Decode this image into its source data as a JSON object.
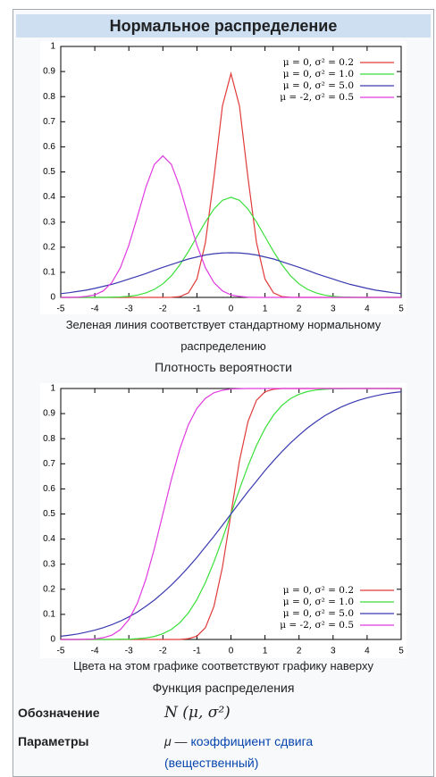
{
  "header": {
    "title": "Нормальное распределение"
  },
  "chart_data": [
    {
      "type": "line",
      "caption": "Зеленая линия соответствует стандартному нормальному распределению",
      "label": "Плотность вероятности",
      "legend": "upper right",
      "xlim": [
        -5,
        5
      ],
      "ylim": [
        0,
        1
      ],
      "xticks": [
        -5,
        -4,
        -3,
        -2,
        -1,
        0,
        1,
        2,
        3,
        4,
        5
      ],
      "yticks": [
        0,
        0.1,
        0.2,
        0.3,
        0.4,
        0.5,
        0.6,
        0.7,
        0.8,
        0.9,
        1
      ],
      "x": [
        -5,
        -4.75,
        -4.5,
        -4.25,
        -4,
        -3.75,
        -3.5,
        -3.25,
        -3,
        -2.75,
        -2.5,
        -2.25,
        -2,
        -1.75,
        -1.5,
        -1.25,
        -1,
        -0.75,
        -0.5,
        -0.25,
        0,
        0.25,
        0.5,
        0.75,
        1,
        1.25,
        1.5,
        1.75,
        2,
        2.25,
        2.5,
        2.75,
        3,
        3.25,
        3.5,
        3.75,
        4,
        4.25,
        4.5,
        4.75,
        5
      ],
      "series": [
        {
          "name": "μ = 0, σ² = 0.2",
          "color": "#e03a3a",
          "values": [
            0,
            0,
            0,
            0,
            0,
            0,
            0,
            0,
            0,
            0,
            0,
            0,
            0,
            0.0004,
            0.003,
            0.018,
            0.073,
            0.219,
            0.477,
            0.763,
            0.892,
            0.763,
            0.477,
            0.219,
            0.073,
            0.018,
            0.003,
            0.0004,
            0,
            0,
            0,
            0,
            0,
            0,
            0,
            0,
            0,
            0,
            0,
            0,
            0
          ]
        },
        {
          "name": "μ = 0, σ² = 1.0",
          "color": "#3adf3a",
          "values": [
            0,
            0,
            0,
            0,
            0,
            0,
            0.001,
            0.002,
            0.004,
            0.009,
            0.018,
            0.032,
            0.054,
            0.086,
            0.13,
            0.183,
            0.242,
            0.301,
            0.352,
            0.387,
            0.399,
            0.387,
            0.352,
            0.301,
            0.242,
            0.183,
            0.13,
            0.086,
            0.054,
            0.032,
            0.018,
            0.009,
            0.004,
            0.002,
            0.001,
            0,
            0,
            0,
            0,
            0,
            0
          ]
        },
        {
          "name": "μ = 0, σ² = 5.0",
          "color": "#3a3ab0",
          "values": [
            0.015,
            0.019,
            0.024,
            0.029,
            0.036,
            0.044,
            0.052,
            0.062,
            0.073,
            0.084,
            0.095,
            0.108,
            0.12,
            0.131,
            0.142,
            0.153,
            0.161,
            0.169,
            0.174,
            0.177,
            0.178,
            0.177,
            0.174,
            0.169,
            0.161,
            0.153,
            0.142,
            0.131,
            0.12,
            0.108,
            0.095,
            0.084,
            0.073,
            0.062,
            0.052,
            0.044,
            0.036,
            0.029,
            0.024,
            0.019,
            0.015
          ]
        },
        {
          "name": "μ = -2, σ² = 0.5",
          "color": "#e03ae0",
          "values": [
            0,
            0,
            0.001,
            0.004,
            0.01,
            0.026,
            0.059,
            0.118,
            0.208,
            0.321,
            0.439,
            0.53,
            0.564,
            0.53,
            0.439,
            0.321,
            0.208,
            0.118,
            0.059,
            0.026,
            0.01,
            0.004,
            0.001,
            0,
            0,
            0,
            0,
            0,
            0,
            0,
            0,
            0,
            0,
            0,
            0,
            0,
            0,
            0,
            0,
            0,
            0
          ]
        }
      ]
    },
    {
      "type": "line",
      "caption": "Цвета на этом графике соответствуют графику наверху",
      "label": "Функция распределения",
      "legend": "lower right",
      "xlim": [
        -5,
        5
      ],
      "ylim": [
        0,
        1
      ],
      "xticks": [
        -5,
        -4,
        -3,
        -2,
        -1,
        0,
        1,
        2,
        3,
        4,
        5
      ],
      "yticks": [
        0,
        0.1,
        0.2,
        0.3,
        0.4,
        0.5,
        0.6,
        0.7,
        0.8,
        0.9,
        1
      ],
      "x": [
        -5,
        -4.75,
        -4.5,
        -4.25,
        -4,
        -3.75,
        -3.5,
        -3.25,
        -3,
        -2.75,
        -2.5,
        -2.25,
        -2,
        -1.75,
        -1.5,
        -1.25,
        -1,
        -0.75,
        -0.5,
        -0.25,
        0,
        0.25,
        0.5,
        0.75,
        1,
        1.25,
        1.5,
        1.75,
        2,
        2.25,
        2.5,
        2.75,
        3,
        3.25,
        3.5,
        3.75,
        4,
        4.25,
        4.5,
        4.75,
        5
      ],
      "series": [
        {
          "name": "μ = 0, σ² = 0.2",
          "color": "#e03a3a",
          "values": [
            0,
            0,
            0,
            0,
            0,
            0,
            0,
            0,
            0,
            0,
            0,
            0,
            0,
            0,
            0,
            0.003,
            0.013,
            0.047,
            0.132,
            0.288,
            0.5,
            0.712,
            0.868,
            0.953,
            0.987,
            0.997,
            1,
            1,
            1,
            1,
            1,
            1,
            1,
            1,
            1,
            1,
            1,
            1,
            1,
            1,
            1
          ]
        },
        {
          "name": "μ = 0, σ² = 1.0",
          "color": "#3adf3a",
          "values": [
            0,
            0,
            0,
            0,
            0,
            0,
            0,
            0.001,
            0.001,
            0.003,
            0.006,
            0.012,
            0.023,
            0.04,
            0.067,
            0.106,
            0.159,
            0.227,
            0.309,
            0.401,
            0.5,
            0.599,
            0.691,
            0.773,
            0.841,
            0.894,
            0.933,
            0.96,
            0.977,
            0.988,
            0.994,
            0.997,
            0.999,
            0.999,
            1,
            1,
            1,
            1,
            1,
            1,
            1
          ]
        },
        {
          "name": "μ = 0, σ² = 5.0",
          "color": "#3a3ab0",
          "values": [
            0.013,
            0.017,
            0.022,
            0.029,
            0.037,
            0.047,
            0.059,
            0.073,
            0.09,
            0.109,
            0.132,
            0.157,
            0.186,
            0.217,
            0.251,
            0.288,
            0.327,
            0.369,
            0.411,
            0.455,
            0.5,
            0.545,
            0.589,
            0.631,
            0.673,
            0.712,
            0.749,
            0.783,
            0.814,
            0.843,
            0.868,
            0.891,
            0.91,
            0.927,
            0.941,
            0.953,
            0.963,
            0.971,
            0.978,
            0.983,
            0.987
          ]
        },
        {
          "name": "μ = -2, σ² = 0.5",
          "color": "#e03ae0",
          "values": [
            0,
            0,
            0,
            0.001,
            0.002,
            0.007,
            0.017,
            0.039,
            0.079,
            0.144,
            0.24,
            0.362,
            0.5,
            0.638,
            0.76,
            0.856,
            0.921,
            0.961,
            0.983,
            0.993,
            0.998,
            0.999,
            1,
            1,
            1,
            1,
            1,
            1,
            1,
            1,
            1,
            1,
            1,
            1,
            1,
            1,
            1,
            1,
            1,
            1,
            1
          ]
        }
      ]
    }
  ],
  "infobox": {
    "rows": [
      {
        "label": "Обозначение",
        "value": "N (μ, σ²)"
      },
      {
        "label": "Параметры",
        "symbol": "μ —",
        "link": "коэффициент сдвига",
        "note": "(вещественный)"
      }
    ]
  }
}
